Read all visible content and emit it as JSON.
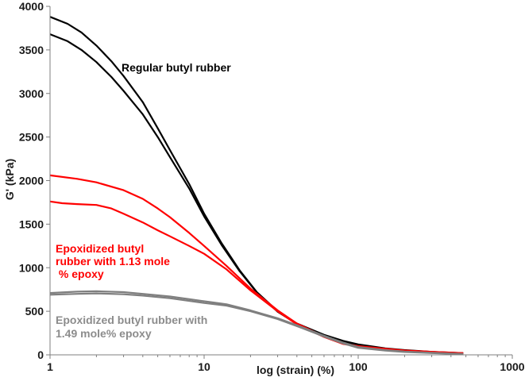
{
  "chart_data": {
    "type": "line",
    "title": "",
    "xlabel": "log (strain) (%)",
    "ylabel": "G' (kPa)",
    "x_scale": "log",
    "xlim": [
      1,
      1000
    ],
    "ylim": [
      0,
      4000
    ],
    "x_ticks": [
      "1",
      "10",
      "100",
      "1000"
    ],
    "y_ticks": [
      "0",
      "500",
      "1000",
      "1500",
      "2000",
      "2500",
      "3000",
      "3500",
      "4000"
    ],
    "grid": false,
    "legend": "none",
    "series": [
      {
        "color": "#000000",
        "points": [
          [
            1,
            3880
          ],
          [
            1.3,
            3800
          ],
          [
            1.6,
            3700
          ],
          [
            2,
            3550
          ],
          [
            2.5,
            3370
          ],
          [
            3,
            3200
          ],
          [
            4,
            2900
          ],
          [
            5,
            2600
          ],
          [
            6,
            2350
          ],
          [
            8,
            1960
          ],
          [
            10,
            1620
          ],
          [
            13,
            1280
          ],
          [
            17,
            970
          ],
          [
            22,
            720
          ],
          [
            30,
            500
          ],
          [
            40,
            360
          ],
          [
            60,
            230
          ],
          [
            80,
            160
          ],
          [
            100,
            120
          ],
          [
            150,
            75
          ],
          [
            200,
            55
          ],
          [
            300,
            35
          ],
          [
            480,
            20
          ]
        ]
      },
      {
        "color": "#000000",
        "points": [
          [
            1,
            3680
          ],
          [
            1.3,
            3600
          ],
          [
            1.6,
            3500
          ],
          [
            2,
            3360
          ],
          [
            2.5,
            3190
          ],
          [
            3,
            3030
          ],
          [
            4,
            2760
          ],
          [
            5,
            2500
          ],
          [
            6,
            2270
          ],
          [
            8,
            1910
          ],
          [
            10,
            1590
          ],
          [
            13,
            1260
          ],
          [
            17,
            960
          ],
          [
            22,
            715
          ],
          [
            30,
            495
          ],
          [
            40,
            355
          ],
          [
            60,
            225
          ],
          [
            80,
            155
          ],
          [
            100,
            115
          ],
          [
            150,
            70
          ],
          [
            200,
            50
          ],
          [
            300,
            30
          ],
          [
            480,
            15
          ]
        ]
      },
      {
        "color": "#ff0000",
        "points": [
          [
            1,
            2060
          ],
          [
            1.5,
            2020
          ],
          [
            2,
            1980
          ],
          [
            3,
            1890
          ],
          [
            4,
            1790
          ],
          [
            5,
            1680
          ],
          [
            6,
            1580
          ],
          [
            8,
            1400
          ],
          [
            10,
            1250
          ],
          [
            14,
            1020
          ],
          [
            20,
            760
          ],
          [
            30,
            510
          ],
          [
            40,
            360
          ],
          [
            60,
            210
          ],
          [
            80,
            130
          ],
          [
            100,
            100
          ],
          [
            150,
            70
          ],
          [
            200,
            50
          ],
          [
            300,
            35
          ],
          [
            480,
            20
          ]
        ]
      },
      {
        "color": "#ff0000",
        "points": [
          [
            1,
            1760
          ],
          [
            1.2,
            1740
          ],
          [
            1.5,
            1730
          ],
          [
            2,
            1720
          ],
          [
            2.5,
            1680
          ],
          [
            3,
            1620
          ],
          [
            4,
            1520
          ],
          [
            5,
            1430
          ],
          [
            6,
            1360
          ],
          [
            8,
            1250
          ],
          [
            10,
            1160
          ],
          [
            14,
            980
          ],
          [
            20,
            740
          ],
          [
            30,
            500
          ],
          [
            40,
            350
          ],
          [
            60,
            205
          ],
          [
            80,
            125
          ],
          [
            100,
            95
          ],
          [
            150,
            65
          ],
          [
            200,
            48
          ],
          [
            300,
            33
          ],
          [
            480,
            18
          ]
        ]
      },
      {
        "color": "#7f7f7f",
        "points": [
          [
            1,
            710
          ],
          [
            1.5,
            725
          ],
          [
            2,
            730
          ],
          [
            3,
            720
          ],
          [
            4,
            700
          ],
          [
            6,
            670
          ],
          [
            8,
            640
          ],
          [
            10,
            615
          ],
          [
            14,
            580
          ],
          [
            20,
            510
          ],
          [
            30,
            420
          ],
          [
            40,
            340
          ],
          [
            60,
            220
          ],
          [
            80,
            140
          ],
          [
            100,
            90
          ],
          [
            150,
            55
          ],
          [
            200,
            38
          ],
          [
            300,
            25
          ],
          [
            480,
            10
          ]
        ]
      },
      {
        "color": "#7f7f7f",
        "points": [
          [
            1,
            690
          ],
          [
            1.5,
            700
          ],
          [
            2,
            705
          ],
          [
            3,
            695
          ],
          [
            4,
            680
          ],
          [
            6,
            650
          ],
          [
            8,
            620
          ],
          [
            10,
            595
          ],
          [
            14,
            565
          ],
          [
            20,
            500
          ],
          [
            30,
            410
          ],
          [
            40,
            330
          ],
          [
            60,
            210
          ],
          [
            80,
            130
          ],
          [
            100,
            80
          ],
          [
            150,
            48
          ],
          [
            200,
            33
          ],
          [
            300,
            20
          ],
          [
            480,
            8
          ]
        ]
      }
    ],
    "annotations": [
      {
        "lines": [
          "Regular butyl rubber"
        ],
        "color": "#000000"
      },
      {
        "lines": [
          "Epoxidized butyl",
          "rubber with 1.13 mole",
          " % epoxy"
        ],
        "color": "#ff0000"
      },
      {
        "lines": [
          "Epoxidized butyl rubber with",
          "1.49 mole% epoxy"
        ],
        "color": "#8c8c8c"
      }
    ]
  }
}
